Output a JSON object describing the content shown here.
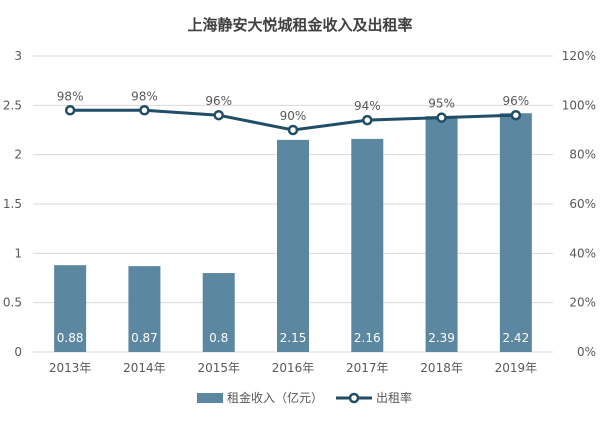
{
  "chart_data": {
    "type": "bar",
    "title": "上海静安大悦城租金收入及出租率",
    "categories": [
      "2013年",
      "2014年",
      "2015年",
      "2016年",
      "2017年",
      "2018年",
      "2019年"
    ],
    "series": [
      {
        "name": "租金收入（亿元）",
        "type": "bar",
        "axis": "left",
        "values": [
          0.88,
          0.87,
          0.8,
          2.15,
          2.16,
          2.39,
          2.42
        ],
        "labels": [
          "0.88",
          "0.87",
          "0.8",
          "2.15",
          "2.16",
          "2.39",
          "2.42"
        ]
      },
      {
        "name": "出租率",
        "type": "line",
        "axis": "right",
        "values": [
          0.98,
          0.98,
          0.96,
          0.9,
          0.94,
          0.95,
          0.96
        ],
        "labels": [
          "98%",
          "98%",
          "96%",
          "90%",
          "94%",
          "95%",
          "96%"
        ]
      }
    ],
    "ylim_left": [
      0,
      3
    ],
    "yticks_left": [
      "0",
      "0.5",
      "1",
      "1.5",
      "2",
      "2.5",
      "3"
    ],
    "ylim_right": [
      0,
      1.2
    ],
    "yticks_right": [
      "0%",
      "20%",
      "40%",
      "60%",
      "80%",
      "100%",
      "120%"
    ],
    "grid": true,
    "legend_position": "bottom",
    "colors": {
      "bar": "#5b87a0",
      "line": "#1f4e66",
      "grid": "#d9d9d9",
      "text": "#595959",
      "title": "#404040",
      "bar_label": "#ffffff"
    }
  }
}
